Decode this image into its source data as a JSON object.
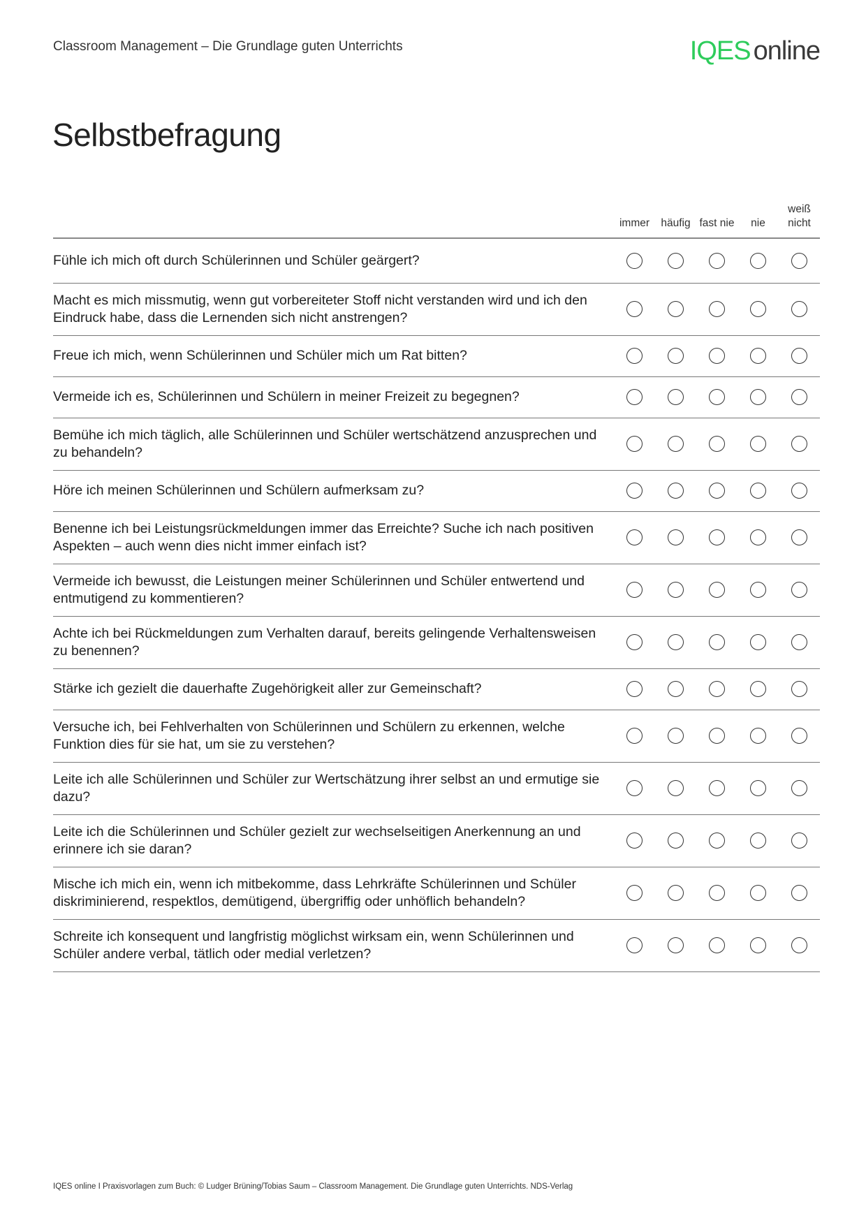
{
  "header": {
    "doc_title": "Classroom Management – Die Grundlage guten Unterrichts",
    "logo_text_green": "IQES",
    "logo_text_dark": "online",
    "logo_color": "#2ecc5b"
  },
  "page_title": "Selbstbefragung",
  "columns": [
    "immer",
    "häufig",
    "fast nie",
    "nie",
    "weiß nicht"
  ],
  "questions": [
    "Fühle ich mich oft durch Schülerinnen und Schüler geärgert?",
    "Macht es mich missmutig, wenn gut vorbereiteter Stoff nicht verstanden wird und ich den Eindruck habe, dass die Lernenden sich nicht anstrengen?",
    "Freue ich mich, wenn Schülerinnen und Schüler mich um Rat bitten?",
    "Vermeide ich es, Schülerinnen und Schülern in meiner Freizeit zu begegnen?",
    "Bemühe ich mich täglich, alle Schülerinnen und Schüler wertschätzend anzusprechen und zu behandeln?",
    "Höre ich meinen Schülerinnen und Schülern aufmerksam zu?",
    "Benenne ich bei Leistungsrückmeldungen immer das Erreichte? Suche ich nach positi­ven Aspekten – auch wenn dies nicht immer einfach ist?",
    "Vermeide ich bewusst, die Leistungen meiner Schülerinnen und Schüler entwertend und entmutigend zu kommentieren?",
    "Achte ich bei Rückmeldungen zum Verhalten darauf, bereits gelingende Verhaltenswei­sen zu benennen?",
    "Stärke ich gezielt die dauerhafte Zugehörigkeit aller zur Gemeinschaft?",
    "Versuche ich, bei Fehlverhalten von Schülerinnen und Schülern zu erkennen, welche Funktion dies für sie hat, um sie zu verstehen?",
    "Leite ich alle Schülerinnen und Schüler zur Wertschätzung ihrer selbst an und ermutige sie dazu?",
    "Leite ich die Schülerinnen und Schüler gezielt zur wechselseitigen Anerkennung an und erinnere ich sie daran?",
    "Mische ich mich ein, wenn ich mitbekomme, dass Lehrkräfte Schülerinnen und Schüler diskriminierend, respektlos, demütigend, übergriffig oder unhöflich behandeln?",
    "Schreite ich konsequent und langfristig möglichst wirksam ein, wenn Schülerinnen und Schüler andere verbal, tätlich oder medial verletzen?"
  ],
  "footer": "IQES online I Praxisvorlagen zum Buch: © Ludger Brüning/Tobias Saum – Classroom Management. Die Grundlage guten Unterrichts. NDS-Verlag"
}
